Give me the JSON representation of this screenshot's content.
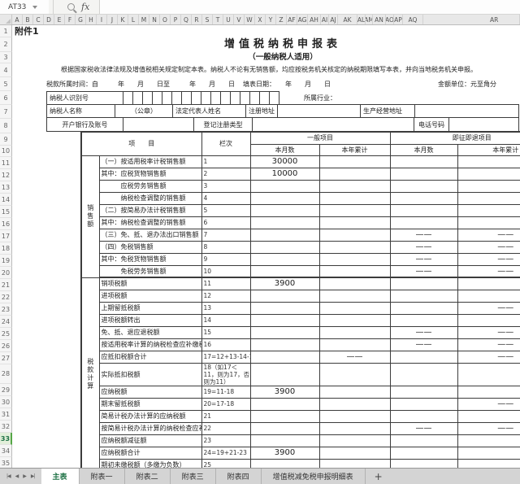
{
  "toolbar": {
    "name_box": "AT33",
    "fx_label": "fx"
  },
  "column_headers": [
    "A",
    "B",
    "C",
    "D",
    "E",
    "F",
    "G",
    "H",
    "I",
    "J",
    "K",
    "L",
    "M",
    "N",
    "O",
    "P",
    "Q",
    "R",
    "S",
    "T",
    "U",
    "V",
    "W",
    "X",
    "Y",
    "Z",
    "AF",
    "AG",
    "AH",
    "AI",
    "AJ",
    "AK",
    "AL",
    "AM",
    "AN",
    "AO",
    "AP",
    "AQ",
    "AR"
  ],
  "rows_count": 35,
  "selected_row": 33,
  "doc": {
    "attachment": "附件1",
    "title": "增值税纳税申报表",
    "subtitle": "（一般纳税人适用）",
    "note": "根据国家税收法律法规及增值税相关规定制定本表。纳税人不论有无销售额，均应按税务机关核定的纳税期限填写本表，并向当地税务机关申报。",
    "period_label": "税款所属时间：自　　　年　　月　　日至　　　年　　月　　日",
    "date_label": "填表日期：　　年　　月　　日",
    "unit_label": "金额单位：元至角分",
    "info": {
      "taxpayer_id_label": "纳税人识别号",
      "id_box_count": 16,
      "industry_label": "所属行业：",
      "name_label": "纳税人名称",
      "seal": "（公章）",
      "legal_rep_label": "法定代表人姓名",
      "reg_addr_label": "注册地址",
      "biz_addr_label": "生产经营地址",
      "bank_label": "开户银行及账号",
      "reg_type_label": "登记注册类型",
      "phone_label": "电话号码"
    },
    "table": {
      "item_header": "项　　目",
      "col_header": "栏次",
      "group1": "一般项目",
      "group2": "即征即退项目",
      "sub_month": "本月数",
      "sub_year": "本年累计",
      "side_labels": [
        {
          "text": "销售额",
          "span": 10
        },
        {
          "text": "税款计算",
          "span": 15
        }
      ],
      "rows": [
        {
          "item": "（一）按适用税率计税销售额",
          "col": "1",
          "c1": "30000",
          "c2": "",
          "c3": "",
          "c4": ""
        },
        {
          "item": "其中：应税货物销售额",
          "col": "2",
          "c1": "10000",
          "c2": "",
          "c3": "",
          "c4": ""
        },
        {
          "item": "　　　应税劳务销售额",
          "col": "3",
          "c1": "",
          "c2": "",
          "c3": "",
          "c4": ""
        },
        {
          "item": "　　　纳税检查调整的销售额",
          "col": "4",
          "c1": "",
          "c2": "",
          "c3": "",
          "c4": ""
        },
        {
          "item": "（二）按简易办法计税销售额",
          "col": "5",
          "c1": "",
          "c2": "",
          "c3": "",
          "c4": ""
        },
        {
          "item": "其中：纳税检查调整的销售额",
          "col": "6",
          "c1": "",
          "c2": "",
          "c3": "",
          "c4": ""
        },
        {
          "item": "（三）免、抵、退办法出口销售额",
          "col": "7",
          "c1": "",
          "c2": "",
          "c3": "——",
          "c4": "——"
        },
        {
          "item": "（四）免税销售额",
          "col": "8",
          "c1": "",
          "c2": "",
          "c3": "——",
          "c4": "——"
        },
        {
          "item": "其中：免税货物销售额",
          "col": "9",
          "c1": "",
          "c2": "",
          "c3": "——",
          "c4": "——"
        },
        {
          "item": "　　　免税劳务销售额",
          "col": "10",
          "c1": "",
          "c2": "",
          "c3": "——",
          "c4": "——"
        },
        {
          "item": "销项税额",
          "col": "11",
          "c1": "3900",
          "c2": "",
          "c3": "",
          "c4": ""
        },
        {
          "item": "进项税额",
          "col": "12",
          "c1": "",
          "c2": "",
          "c3": "",
          "c4": ""
        },
        {
          "item": "上期留抵税额",
          "col": "13",
          "c1": "",
          "c2": "",
          "c3": "",
          "c4": "——"
        },
        {
          "item": "进项税额转出",
          "col": "14",
          "c1": "",
          "c2": "",
          "c3": "",
          "c4": ""
        },
        {
          "item": "免、抵、退应退税额",
          "col": "15",
          "c1": "",
          "c2": "",
          "c3": "——",
          "c4": "——"
        },
        {
          "item": "按适用税率计算的纳税检查应补缴税额",
          "col": "16",
          "c1": "",
          "c2": "",
          "c3": "——",
          "c4": "——"
        },
        {
          "item": "应抵扣税额合计",
          "col": "17=12+13-14-15+16",
          "c1": "",
          "c2": "——",
          "c3": "",
          "c4": "——"
        },
        {
          "item": "实际抵扣税额",
          "col": "18（如17＜11，则为17，否则为11）",
          "c1": "",
          "c2": "",
          "c3": "",
          "c4": ""
        },
        {
          "item": "应纳税额",
          "col": "19=11-18",
          "c1": "3900",
          "c2": "",
          "c3": "",
          "c4": ""
        },
        {
          "item": "期末留抵税额",
          "col": "20=17-18",
          "c1": "",
          "c2": "",
          "c3": "",
          "c4": "——"
        },
        {
          "item": "简易计税办法计算的应纳税额",
          "col": "21",
          "c1": "",
          "c2": "",
          "c3": "",
          "c4": ""
        },
        {
          "item": "按简易计税办法计算的纳税检查应补缴税额",
          "col": "22",
          "c1": "",
          "c2": "",
          "c3": "——",
          "c4": "——"
        },
        {
          "item": "应纳税额减征额",
          "col": "23",
          "c1": "",
          "c2": "",
          "c3": "",
          "c4": ""
        },
        {
          "item": "应纳税额合计",
          "col": "24=19+21-23",
          "c1": "3900",
          "c2": "",
          "c3": "",
          "c4": ""
        },
        {
          "item": "期初未缴税额（多缴为负数）",
          "col": "25",
          "c1": "",
          "c2": "",
          "c3": "",
          "c4": ""
        }
      ]
    }
  },
  "sheet_tabs": {
    "nav_icons": [
      "|◀",
      "◀",
      "▶",
      "▶|"
    ],
    "tabs": [
      {
        "label": "主表",
        "active": true
      },
      {
        "label": "附表一",
        "active": false
      },
      {
        "label": "附表二",
        "active": false
      },
      {
        "label": "附表三",
        "active": false
      },
      {
        "label": "附表四",
        "active": false
      },
      {
        "label": "增值税减免税申报明细表",
        "active": false
      }
    ],
    "add_label": "+"
  }
}
